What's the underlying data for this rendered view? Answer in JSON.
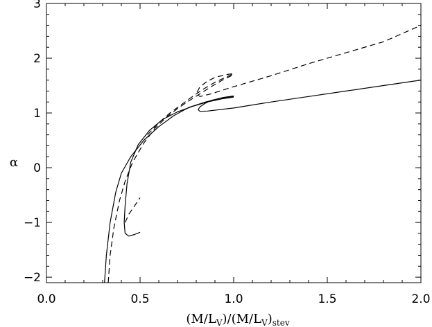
{
  "chart_data": {
    "type": "line",
    "title": "",
    "xlabel": "(M/L_V)/(M/L_V)_stev",
    "xlabel_parts": {
      "open": "(M/L",
      "sub_v": "V",
      "mid": ")/(M/L",
      "sub_v2": "V",
      "close": ")",
      "sub_stev": "stev"
    },
    "ylabel": "α",
    "xlim": [
      0.0,
      2.0
    ],
    "ylim": [
      -2.1,
      3.0
    ],
    "xticks": [
      "0.0",
      "0.5",
      "1.0",
      "1.5",
      "2.0"
    ],
    "yticks": [
      "−2",
      "−1",
      "0",
      "1",
      "2",
      "3"
    ],
    "grid": false,
    "series": [
      {
        "style": "solid",
        "points": [
          [
            0.31,
            -2.1
          ],
          [
            0.32,
            -1.6
          ],
          [
            0.34,
            -1.0
          ],
          [
            0.37,
            -0.45
          ],
          [
            0.4,
            -0.1
          ],
          [
            0.45,
            0.2
          ],
          [
            0.52,
            0.5
          ],
          [
            0.6,
            0.75
          ],
          [
            0.68,
            0.95
          ],
          [
            0.76,
            1.1
          ],
          [
            0.85,
            1.2
          ],
          [
            0.93,
            1.27
          ],
          [
            1.0,
            1.3
          ]
        ]
      },
      {
        "style": "solid",
        "points": [
          [
            1.0,
            1.29
          ],
          [
            0.94,
            1.26
          ],
          [
            0.86,
            1.2
          ],
          [
            0.78,
            1.12
          ],
          [
            0.7,
            1.02
          ],
          [
            0.62,
            0.88
          ],
          [
            0.55,
            0.68
          ],
          [
            0.49,
            0.42
          ],
          [
            0.45,
            0.1
          ],
          [
            0.43,
            -0.3
          ],
          [
            0.42,
            -0.7
          ],
          [
            0.415,
            -1.0
          ],
          [
            0.42,
            -1.2
          ],
          [
            0.44,
            -1.25
          ],
          [
            0.47,
            -1.22
          ],
          [
            0.5,
            -1.18
          ]
        ]
      },
      {
        "style": "solid",
        "points": [
          [
            1.0,
            1.31
          ],
          [
            0.94,
            1.28
          ],
          [
            0.88,
            1.23
          ],
          [
            0.85,
            1.18
          ],
          [
            0.82,
            1.11
          ],
          [
            0.81,
            1.06
          ],
          [
            0.82,
            1.03
          ],
          [
            0.86,
            1.035
          ],
          [
            1.0,
            1.09
          ],
          [
            1.2,
            1.2
          ],
          [
            1.4,
            1.3
          ],
          [
            1.6,
            1.4
          ],
          [
            1.8,
            1.5
          ],
          [
            2.0,
            1.6
          ]
        ]
      },
      {
        "style": "dashed",
        "points": [
          [
            0.33,
            -2.1
          ],
          [
            0.34,
            -1.6
          ],
          [
            0.36,
            -1.1
          ],
          [
            0.39,
            -0.6
          ],
          [
            0.42,
            -0.25
          ],
          [
            0.46,
            0.1
          ],
          [
            0.52,
            0.45
          ],
          [
            0.58,
            0.72
          ],
          [
            0.64,
            0.92
          ],
          [
            0.7,
            1.08
          ],
          [
            0.76,
            1.22
          ],
          [
            0.82,
            1.35
          ],
          [
            0.88,
            1.48
          ],
          [
            0.94,
            1.6
          ],
          [
            1.0,
            1.7
          ]
        ]
      },
      {
        "style": "dashed",
        "points": [
          [
            0.42,
            -1.0
          ],
          [
            0.44,
            -0.85
          ],
          [
            0.47,
            -0.7
          ],
          [
            0.5,
            -0.55
          ]
        ]
      },
      {
        "style": "dashed",
        "points": [
          [
            0.54,
            0.6
          ],
          [
            0.6,
            0.82
          ],
          [
            0.66,
            1.0
          ],
          [
            0.72,
            1.15
          ],
          [
            0.78,
            1.3
          ],
          [
            0.84,
            1.44
          ],
          [
            0.9,
            1.56
          ],
          [
            0.95,
            1.64
          ],
          [
            1.0,
            1.72
          ],
          [
            0.96,
            1.7
          ],
          [
            0.9,
            1.65
          ],
          [
            0.86,
            1.58
          ],
          [
            0.82,
            1.48
          ],
          [
            0.8,
            1.35
          ],
          [
            0.82,
            1.3
          ],
          [
            0.88,
            1.35
          ],
          [
            1.0,
            1.48
          ],
          [
            1.2,
            1.68
          ],
          [
            1.4,
            1.9
          ],
          [
            1.6,
            2.1
          ],
          [
            1.8,
            2.3
          ],
          [
            2.0,
            2.6
          ]
        ]
      }
    ]
  }
}
